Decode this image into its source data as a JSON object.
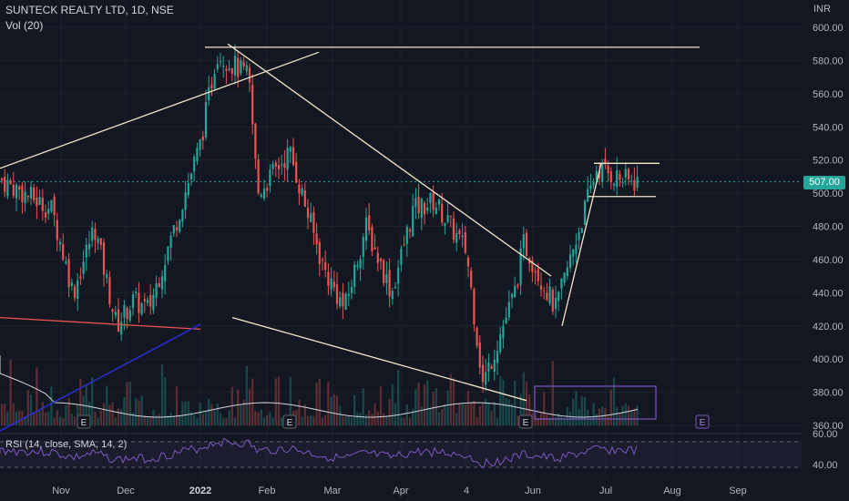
{
  "header": {
    "symbol_title": "SUNTECK REALTY LTD, 1D, NSE",
    "volume_label": "Vol (20)",
    "currency": "INR"
  },
  "price_axis": {
    "ticks": [
      "600.00",
      "580.00",
      "560.00",
      "540.00",
      "520.00",
      "500.00",
      "480.00",
      "460.00",
      "440.00",
      "420.00",
      "400.00",
      "380.00",
      "360.00"
    ]
  },
  "current_price": "507.00",
  "rsi_panel": {
    "label": "RSI (14, close, SMA, 14, 2)",
    "ticks": [
      "60.00",
      "40.00"
    ]
  },
  "earnings_marker": "E",
  "colors": {
    "bull": "#26a69a",
    "bear": "#ef5350",
    "trendline": "#f5e6c8",
    "rsi": "#7e57c2",
    "background": "#131722"
  },
  "chart_data": {
    "type": "candlestick",
    "title": "SUNTECK REALTY LTD, 1D, NSE",
    "ylabel": "INR",
    "ylim": [
      360,
      610
    ],
    "x_ticks": [
      "Nov",
      "Dec",
      "2022",
      "Feb",
      "Mar",
      "Apr",
      "4",
      "Jun",
      "Jul",
      "Aug",
      "Sep"
    ],
    "price_path": [
      {
        "t": "Oct",
        "close": 510
      },
      {
        "t": "Nov",
        "close": 490
      },
      {
        "t": "Nov",
        "close": 440
      },
      {
        "t": "Nov",
        "close": 480
      },
      {
        "t": "Dec",
        "close": 420
      },
      {
        "t": "Dec",
        "close": 435
      },
      {
        "t": "Dec",
        "close": 430
      },
      {
        "t": "Dec",
        "close": 460
      },
      {
        "t": "2022",
        "close": 530
      },
      {
        "t": "Jan",
        "close": 585
      },
      {
        "t": "Jan",
        "close": 570
      },
      {
        "t": "Feb",
        "close": 500
      },
      {
        "t": "Feb",
        "close": 525
      },
      {
        "t": "Mar",
        "close": 455
      },
      {
        "t": "Mar",
        "close": 430
      },
      {
        "t": "Mar",
        "close": 480
      },
      {
        "t": "Apr",
        "close": 440
      },
      {
        "t": "Apr",
        "close": 490
      },
      {
        "t": "Apr",
        "close": 495
      },
      {
        "t": "4",
        "close": 465
      },
      {
        "t": "May",
        "close": 385
      },
      {
        "t": "May",
        "close": 440
      },
      {
        "t": "Jun",
        "close": 470
      },
      {
        "t": "Jun",
        "close": 430
      },
      {
        "t": "Jul",
        "close": 515
      },
      {
        "t": "Jul",
        "close": 507
      }
    ],
    "trendlines": [
      {
        "from": {
          "t": "Oct",
          "price": 515
        },
        "to": {
          "t": "Jan",
          "price": 585
        }
      },
      {
        "from": {
          "t": "Jan",
          "price": 588
        },
        "to": {
          "t": "Jul",
          "price": 588
        }
      },
      {
        "from": {
          "t": "Jan",
          "price": 590
        },
        "to": {
          "t": "May",
          "price": 450
        }
      },
      {
        "from": {
          "t": "Feb",
          "price": 425
        },
        "to": {
          "t": "May",
          "price": 375
        }
      },
      {
        "from": {
          "t": "Oct",
          "price": 425
        },
        "to": {
          "t": "Dec",
          "price": 418
        }
      },
      {
        "from": {
          "t": "Jun",
          "price": 420
        },
        "to": {
          "t": "Jun",
          "price": 518
        }
      },
      {
        "from": {
          "t": "Jun",
          "price": 518
        },
        "to": {
          "t": "Jul",
          "price": 518
        }
      },
      {
        "from": {
          "t": "Jun",
          "price": 498
        },
        "to": {
          "t": "Jul",
          "price": 498
        }
      }
    ],
    "legend": "none",
    "grid": true
  }
}
